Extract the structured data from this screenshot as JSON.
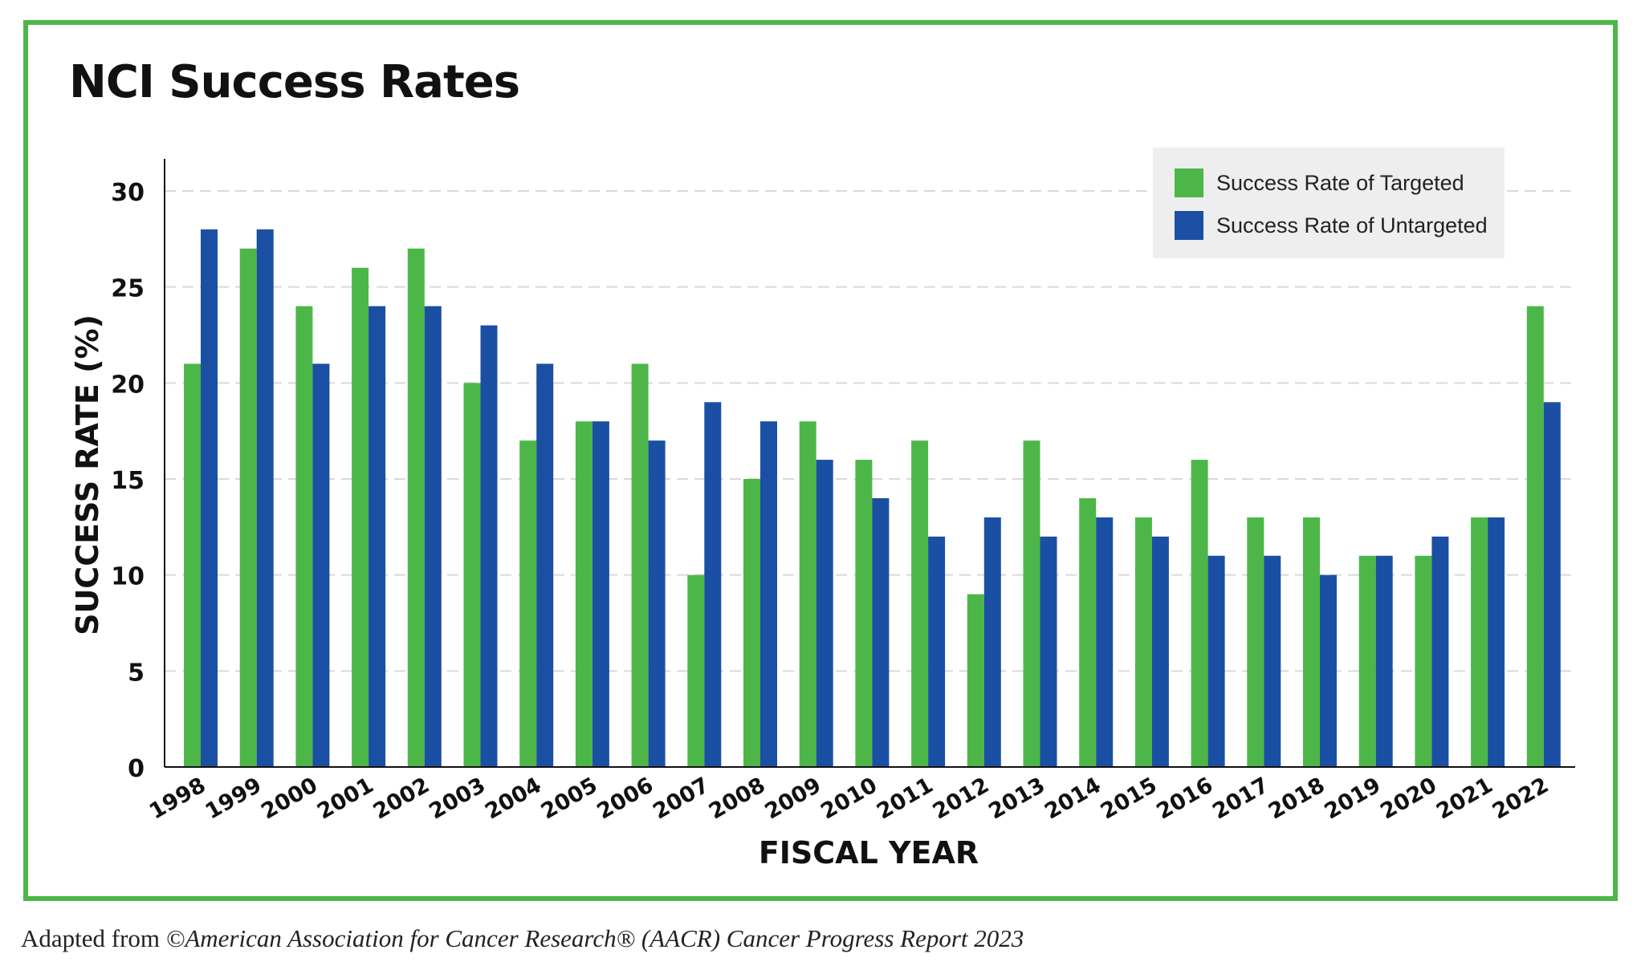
{
  "title": "NCI Success Rates",
  "source": {
    "prefix": "Adapted from ",
    "italic": "©American Association for Cancer Research® (AACR) Cancer Progress Report 2023"
  },
  "colors": {
    "frame": "#4cb748",
    "targeted": "#4cb748",
    "untargeted": "#1b4fa3",
    "grid": "#d9d9d9",
    "legend_bg": "#eeeeee"
  },
  "chart_data": {
    "type": "bar",
    "title": "NCI Success Rates",
    "xlabel": "FISCAL YEAR",
    "ylabel": "SUCCESS RATE (%)",
    "ylim": [
      0,
      30
    ],
    "yticks": [
      0,
      5,
      10,
      15,
      20,
      25,
      30
    ],
    "grid": "horizontal dashed",
    "legend_position": "top-right",
    "categories": [
      "1998",
      "1999",
      "2000",
      "2001",
      "2002",
      "2003",
      "2004",
      "2005",
      "2006",
      "2007",
      "2008",
      "2009",
      "2010",
      "2011",
      "2012",
      "2013",
      "2014",
      "2015",
      "2016",
      "2017",
      "2018",
      "2019",
      "2020",
      "2021",
      "2022"
    ],
    "series": [
      {
        "name": "Success Rate of Targeted",
        "color": "#4cb748",
        "values": [
          21,
          27,
          24,
          26,
          27,
          20,
          17,
          18,
          21,
          10,
          15,
          18,
          16,
          17,
          9,
          17,
          14,
          13,
          16,
          13,
          13,
          11,
          11,
          13,
          24
        ]
      },
      {
        "name": "Success Rate of Untargeted",
        "color": "#1b4fa3",
        "values": [
          28,
          28,
          21,
          24,
          24,
          23,
          21,
          18,
          17,
          19,
          18,
          16,
          14,
          12,
          13,
          12,
          13,
          12,
          11,
          11,
          10,
          11,
          12,
          13,
          19
        ]
      }
    ]
  }
}
